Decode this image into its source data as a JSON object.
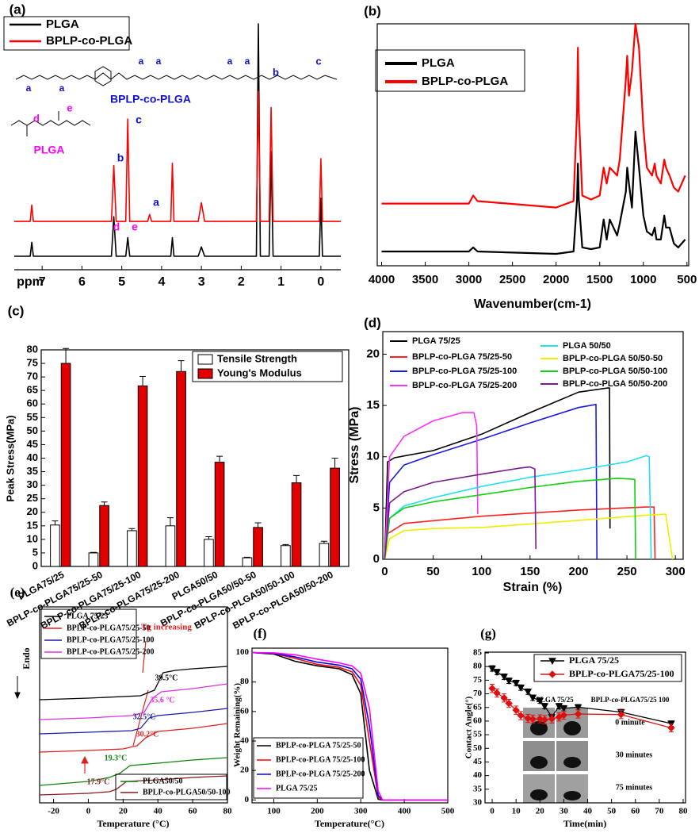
{
  "chart_data": [
    {
      "panel": "(a)",
      "type": "line",
      "xlabel": "ppm",
      "xlim": [
        7.7,
        -0.5
      ],
      "xticks": [
        7,
        6,
        5,
        4,
        3,
        2,
        1,
        0
      ],
      "x": [
        7.7,
        7.3,
        7.26,
        7.22,
        5.26,
        5.2,
        5.14,
        4.9,
        4.85,
        4.8,
        4.35,
        4.3,
        4.25,
        3.77,
        3.73,
        3.69,
        3.08,
        3.0,
        2.92,
        1.62,
        1.57,
        1.52,
        1.3,
        1.25,
        1.2,
        0.04,
        0,
        -0.04,
        -0.5
      ],
      "series": [
        {
          "name": "PLGA",
          "color": "#000000",
          "values": [
            0,
            0,
            6,
            0,
            0,
            17,
            0,
            0,
            8,
            0,
            0,
            0,
            0,
            0,
            8,
            0,
            0,
            4,
            0,
            0,
            100,
            0,
            0,
            45,
            0,
            0,
            25,
            0,
            0
          ]
        },
        {
          "name": "BPLP-co-PLGA",
          "color": "#ff0000",
          "values": [
            15,
            15,
            22,
            15,
            15,
            39,
            15,
            15,
            59,
            15,
            15,
            18,
            15,
            15,
            40,
            15,
            15,
            23,
            15,
            15,
            71,
            15,
            15,
            64,
            15,
            15,
            42,
            15,
            15
          ]
        }
      ],
      "annotations": [
        {
          "text": "a",
          "color": "#1010d0"
        },
        {
          "text": "a",
          "color": "#1010d0"
        },
        {
          "text": "a",
          "color": "#1010d0"
        },
        {
          "text": "a",
          "color": "#1010d0"
        },
        {
          "text": "a",
          "color": "#1010d0"
        },
        {
          "text": "a",
          "color": "#1010d0"
        },
        {
          "text": "b",
          "color": "#1010d0"
        },
        {
          "text": "c",
          "color": "#1010d0"
        },
        {
          "text": "BPLP-co-PLGA",
          "color": "#1010d0"
        },
        {
          "text": "d",
          "color": "#ff00ff"
        },
        {
          "text": "e",
          "color": "#ff00ff"
        },
        {
          "text": "PLGA",
          "color": "#ff00ff"
        },
        {
          "text": "b",
          "color": "#1010d0"
        },
        {
          "text": "c",
          "color": "#1010d0"
        },
        {
          "text": "a",
          "color": "#1010d0"
        },
        {
          "text": "d",
          "color": "#ff00ff"
        },
        {
          "text": "e",
          "color": "#ff00ff"
        }
      ]
    },
    {
      "panel": "(b)",
      "type": "line",
      "xlabel": "Wavenumber(cm-1)",
      "xlim": [
        4050,
        480
      ],
      "xticks": [
        4000,
        3500,
        3000,
        2500,
        2000,
        1500,
        1000,
        500
      ],
      "x": [
        4000,
        3000,
        2950,
        2900,
        2000,
        1800,
        1760,
        1750,
        1740,
        1700,
        1600,
        1500,
        1455,
        1420,
        1385,
        1300,
        1270,
        1200,
        1185,
        1165,
        1130,
        1090,
        1050,
        1000,
        960,
        900,
        870,
        850,
        800,
        760,
        740,
        700,
        650,
        600,
        520
      ],
      "series": [
        {
          "name": "PLGA",
          "color": "#000000",
          "values": [
            25,
            25,
            30,
            25,
            22,
            25,
            90,
            135,
            90,
            30,
            28,
            30,
            65,
            40,
            65,
            45,
            60,
            100,
            130,
            110,
            80,
            175,
            130,
            70,
            50,
            45,
            55,
            40,
            40,
            70,
            55,
            55,
            35,
            30,
            40
          ]
        },
        {
          "name": "BPLP-co-PLGA",
          "color": "#ff0000",
          "values": [
            85,
            85,
            95,
            88,
            80,
            88,
            200,
            280,
            200,
            95,
            90,
            95,
            130,
            110,
            130,
            120,
            140,
            240,
            270,
            220,
            250,
            310,
            280,
            180,
            130,
            120,
            135,
            120,
            110,
            140,
            130,
            120,
            105,
            100,
            120
          ]
        }
      ]
    },
    {
      "panel": "(c)",
      "type": "bar",
      "ylabel": "Peak Stress(MPa)",
      "ylim": [
        0,
        80
      ],
      "yticks": [
        0,
        5,
        10,
        15,
        20,
        25,
        30,
        35,
        40,
        45,
        50,
        55,
        60,
        65,
        70,
        75,
        80
      ],
      "categories": [
        "PLGA75/25",
        "BPLP-co-PLGA75/25-50",
        "BPLP-co-PLGA75/25-100",
        "BPLP-co-PLGA75/25-200",
        "PLGA50/50",
        "BPLP-co-PLGA50/50-50",
        "BPLP-co-PLGA50/50-100",
        "BPLP-co-PLGA50/50-200"
      ],
      "series": [
        {
          "name": "Tensile Strength",
          "color": "#ffffff",
          "values": [
            15.3,
            5,
            13.2,
            15,
            10,
            3.2,
            7.7,
            8.5
          ],
          "errors": [
            1.5,
            0.2,
            0.8,
            3,
            1,
            0.2,
            0.4,
            0.8
          ]
        },
        {
          "name": "Young's Modulus",
          "color": "#e00000",
          "values": [
            75,
            22.5,
            66.7,
            72,
            38.5,
            14.4,
            30.9,
            36.3
          ],
          "errors": [
            5.5,
            1.3,
            3.5,
            4,
            2.2,
            1.7,
            2.7,
            3.7
          ]
        }
      ]
    },
    {
      "panel": "(d)",
      "type": "line",
      "xlabel": "Strain (%)",
      "ylabel": "Stress (MPa)",
      "xlim": [
        -2,
        308
      ],
      "ylim": [
        0,
        22.2
      ],
      "xticks": [
        0,
        50,
        100,
        150,
        200,
        250,
        300
      ],
      "yticks": [
        0,
        5,
        10,
        15,
        20
      ],
      "series": [
        {
          "name": "PLGA 75/25",
          "color": "#000000",
          "x": [
            0,
            3,
            10,
            50,
            100,
            150,
            200,
            230,
            232,
            232.5
          ],
          "values": [
            0,
            9.5,
            9.9,
            10.6,
            12.2,
            14.3,
            16.3,
            16.7,
            16.7,
            3
          ]
        },
        {
          "name": "BPLP-co-PLGA 75/25-50",
          "color": "#ff2020",
          "x": [
            0,
            3,
            20,
            100,
            200,
            270,
            278,
            279
          ],
          "values": [
            0,
            2.5,
            3.5,
            4.2,
            4.8,
            5.1,
            5.1,
            0
          ]
        },
        {
          "name": "BPLP-co-PLGA 75/25-100",
          "color": "#1a1ae0",
          "x": [
            0,
            5,
            20,
            50,
            100,
            150,
            200,
            218,
            219
          ],
          "values": [
            0,
            7.5,
            9.2,
            10.2,
            11.7,
            13.3,
            14.8,
            15.1,
            0
          ]
        },
        {
          "name": "BPLP-co-PLGA 75/25-200",
          "color": "#ff30ff",
          "x": [
            0,
            5,
            20,
            50,
            80,
            92,
            95,
            96
          ],
          "values": [
            0,
            10,
            12,
            13.5,
            14.3,
            14.3,
            13,
            4.4
          ]
        },
        {
          "name": "PLGA 50/50",
          "color": "#20e0f0",
          "x": [
            0,
            5,
            20,
            50,
            100,
            150,
            200,
            250,
            270,
            273,
            275
          ],
          "values": [
            0,
            4,
            5.2,
            6,
            7.1,
            8,
            8.7,
            9.5,
            10.1,
            10,
            0
          ]
        },
        {
          "name": "BPLP-co-PLGA 50/50-50",
          "color": "#eeee00",
          "x": [
            0,
            5,
            20,
            50,
            100,
            200,
            270,
            290,
            297
          ],
          "values": [
            0,
            2,
            2.8,
            3,
            3.1,
            3.8,
            4.3,
            4.4,
            0
          ]
        },
        {
          "name": "BPLP-co-PLGA 50/50-100",
          "color": "#10d010",
          "x": [
            0,
            5,
            20,
            50,
            100,
            150,
            200,
            240,
            258,
            259
          ],
          "values": [
            0,
            4,
            5,
            5.6,
            6.3,
            7,
            7.6,
            7.9,
            7.8,
            0
          ]
        },
        {
          "name": "BPLP-co-PLGA 50/50-200",
          "color": "#7b1a8c",
          "x": [
            0,
            5,
            20,
            50,
            100,
            140,
            150,
            155,
            156
          ],
          "values": [
            0,
            5.5,
            6.6,
            7.5,
            8.3,
            8.9,
            9,
            8.8,
            1
          ]
        }
      ]
    },
    {
      "panel": "(e)",
      "type": "line",
      "xlabel": "Temperature (°C)",
      "ylabel": "Endo",
      "xlim": [
        -28,
        80
      ],
      "xticks": [
        -20,
        0,
        20,
        40,
        60,
        80
      ],
      "series": [
        {
          "name": "PLGA 75/25",
          "color": "#000000",
          "x": [
            -28,
            0,
            30,
            38,
            43,
            50,
            60,
            80
          ],
          "values": [
            138,
            140,
            143,
            150,
            172,
            175,
            177,
            180
          ]
        },
        {
          "name": "BPLP-co-PLGA75/25-50",
          "color": "#e02020",
          "x": [
            -28,
            0,
            20,
            28,
            33,
            40,
            60,
            80
          ],
          "values": [
            72,
            74,
            76,
            80,
            90,
            98,
            102,
            108
          ]
        },
        {
          "name": "BPLP-co-PLGA75/25-100",
          "color": "#1a1ab0",
          "x": [
            -28,
            0,
            25,
            30,
            35,
            40,
            60,
            80
          ],
          "values": [
            95,
            97,
            99,
            102,
            115,
            118,
            122,
            127
          ]
        },
        {
          "name": "BPLP-co-PLGA75/25-200",
          "color": "#e030e0",
          "x": [
            -28,
            0,
            25,
            32,
            37,
            42,
            60,
            80
          ],
          "values": [
            113,
            115,
            118,
            122,
            140,
            148,
            152,
            158
          ]
        },
        {
          "name": "PLGA50/50",
          "color": "#108010",
          "x": [
            -28,
            0,
            12,
            18,
            24,
            40,
            60,
            80
          ],
          "values": [
            30,
            35,
            40,
            45,
            55,
            58,
            62,
            65
          ]
        },
        {
          "name": "BPLP-co-PLGA50/50-100",
          "color": "#8b1a1a",
          "x": [
            -28,
            0,
            12,
            16,
            22,
            40,
            60,
            80
          ],
          "values": [
            18,
            20,
            22,
            25,
            35,
            37,
            40,
            42
          ]
        }
      ],
      "annotations": [
        {
          "text": "Tg increasing",
          "color": "#e02020"
        },
        {
          "text": "39.5°C",
          "color": "#000000"
        },
        {
          "text": "35.6 °C",
          "color": "#e030e0"
        },
        {
          "text": "32.5°C",
          "color": "#1a1ab0"
        },
        {
          "text": "30.2°C",
          "color": "#e02020"
        },
        {
          "text": "19.3°C",
          "color": "#108010"
        },
        {
          "text": "17.9°C",
          "color": "#8b1a1a"
        }
      ]
    },
    {
      "panel": "(f)",
      "type": "line",
      "xlabel": "Temperature(°C)",
      "ylabel": "Weight Remaining(%)",
      "xlim": [
        50,
        500
      ],
      "ylim": [
        -2,
        103
      ],
      "xticks": [
        100,
        200,
        300,
        400,
        500
      ],
      "yticks": [
        0,
        20,
        40,
        60,
        80,
        100
      ],
      "x": [
        50,
        100,
        150,
        200,
        250,
        280,
        300,
        320,
        340,
        350,
        400,
        500
      ],
      "series": [
        {
          "name": "BPLP-co-PLGA 75/25-50",
          "color": "#000000",
          "values": [
            100,
            99,
            94,
            91,
            89,
            85,
            72,
            20,
            0.5,
            0,
            0,
            0
          ]
        },
        {
          "name": "BPLP-co-PLGA 75/25-100",
          "color": "#ff0000",
          "values": [
            100,
            99.5,
            96,
            92,
            90,
            87,
            78,
            40,
            2,
            0,
            0,
            0
          ]
        },
        {
          "name": "BPLP-co-PLGA 75/25-200",
          "color": "#0000ff",
          "values": [
            100,
            99.5,
            97,
            93.5,
            91.5,
            89,
            82,
            50,
            3,
            0,
            0,
            0
          ]
        },
        {
          "name": "PLGA 75/25",
          "color": "#ff00ff",
          "values": [
            100,
            99.8,
            98.5,
            95.5,
            93,
            91,
            86,
            62,
            6,
            0,
            0,
            0
          ]
        }
      ]
    },
    {
      "panel": "(g)",
      "type": "line",
      "xlabel": "Time(min)",
      "ylabel": "Contact Angle(°)",
      "xlim": [
        -3,
        81
      ],
      "ylim": [
        30,
        85.3
      ],
      "xticks": [
        0,
        10,
        20,
        30,
        40,
        50,
        60,
        70,
        80
      ],
      "yticks": [
        30,
        35,
        40,
        45,
        50,
        55,
        60,
        65,
        70,
        75,
        80,
        85
      ],
      "x": [
        0,
        2,
        5,
        7,
        10,
        12,
        15,
        17,
        20,
        22,
        25,
        28,
        30,
        36,
        54,
        75
      ],
      "series": [
        {
          "name": "PLGA 75/25",
          "color": "#000000",
          "marker": "triangle",
          "values": [
            79.3,
            78,
            76.3,
            74.8,
            74,
            72.3,
            70.8,
            68.6,
            67.5,
            65.5,
            61.5,
            65.5,
            64.7,
            65.1,
            63.3,
            59.1
          ],
          "errors": [
            1,
            1,
            1,
            1,
            1,
            1,
            1,
            1,
            1,
            1,
            1,
            1,
            1,
            1,
            1,
            1
          ]
        },
        {
          "name": "BPLP-co-PLGA75/25-100",
          "color": "#e01010",
          "marker": "diamond",
          "values": [
            72,
            70.3,
            68.5,
            66.5,
            64,
            62,
            61,
            60.7,
            60.8,
            60.5,
            60.8,
            61.5,
            62.2,
            62.6,
            62.4,
            57.5
          ],
          "errors": [
            1.5,
            1.5,
            1.5,
            1.5,
            1.5,
            1.5,
            1.5,
            1.5,
            1.5,
            1.5,
            1.5,
            1.5,
            1.5,
            1.5,
            1.5,
            1.5
          ]
        }
      ],
      "annotations": [
        {
          "text": "PLGA 75/25",
          "color": "#000000"
        },
        {
          "text": "BPLP-co-PLGA75/25 100",
          "color": "#000000"
        },
        {
          "text": "0 minute",
          "color": "#000000"
        },
        {
          "text": "30 minutes",
          "color": "#000000"
        },
        {
          "text": "75 minutes",
          "color": "#000000"
        }
      ]
    }
  ]
}
